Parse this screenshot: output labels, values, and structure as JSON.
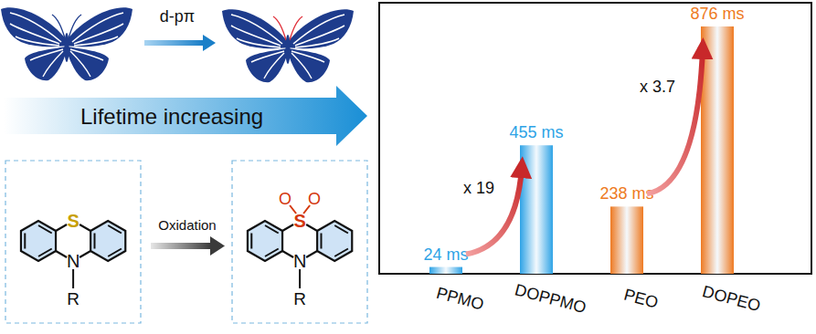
{
  "diagram": {
    "transformation_label": "d-pπ",
    "banner": "Lifetime increasing",
    "reaction_label": "Oxidation",
    "reactant": {
      "atoms": [
        "S",
        "N",
        "R"
      ]
    },
    "product": {
      "atoms": [
        "S",
        "O",
        "O",
        "N",
        "R"
      ]
    }
  },
  "chart_data": {
    "type": "bar",
    "categories": [
      "PPMO",
      "DOPPMO",
      "PEO",
      "DOPEO"
    ],
    "values": [
      24,
      455,
      238,
      876
    ],
    "value_labels": [
      "24 ms",
      "455 ms",
      "238 ms",
      "876 ms"
    ],
    "colors": [
      "#2ea3e6",
      "#2ea3e6",
      "#ee7a22",
      "#ee7a22"
    ],
    "ylim": [
      0,
      960
    ],
    "data_labels": true,
    "tick_labels": "x",
    "annotations": [
      "x 19",
      "x 3.7"
    ]
  }
}
